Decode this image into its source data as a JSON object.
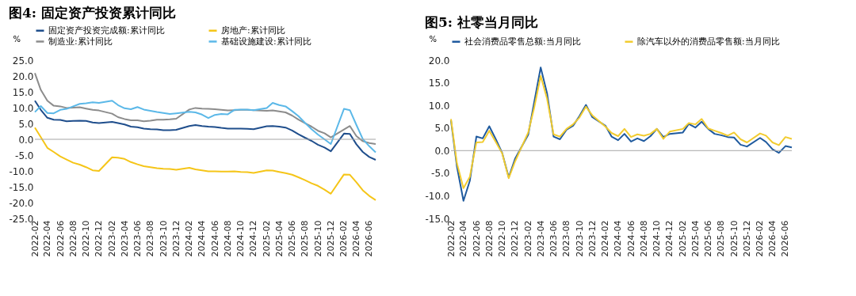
{
  "chart_data": [
    {
      "type": "line",
      "title": "图4: 固定资产投资累计同比",
      "ylabel": "%",
      "x": [
        "2022-02",
        "2022-03",
        "2022-04",
        "2022-05",
        "2022-06",
        "2022-07",
        "2022-08",
        "2022-09",
        "2022-10",
        "2022-11",
        "2022-12",
        "2023-02",
        "2023-03",
        "2023-04",
        "2023-05",
        "2023-06",
        "2023-07",
        "2023-08",
        "2023-09",
        "2023-10",
        "2023-11",
        "2023-12",
        "2024-02",
        "2024-03",
        "2024-04",
        "2024-05",
        "2024-06",
        "2024-07",
        "2024-08",
        "2024-09",
        "2024-10",
        "2024-11",
        "2024-12",
        "2025-02",
        "2025-03",
        "2025-04",
        "2025-05",
        "2025-06",
        "2025-07",
        "2025-08",
        "2025-09",
        "2025-10",
        "2025-11",
        "2025-12",
        "2026-02",
        "2026-03",
        "2026-04",
        "2026-05",
        "2026-06",
        "2026-07"
      ],
      "series": [
        {
          "name": "固定资产投资完成额:累计同比",
          "color": "#1f4e8c",
          "values": [
            12.2,
            9.3,
            6.8,
            6.2,
            6.1,
            5.7,
            5.8,
            5.9,
            5.8,
            5.3,
            5.1,
            5.5,
            5.1,
            4.7,
            4.0,
            3.8,
            3.4,
            3.2,
            3.1,
            2.9,
            2.9,
            3.0,
            4.2,
            4.5,
            4.2,
            4.0,
            3.9,
            3.6,
            3.4,
            3.4,
            3.4,
            3.3,
            3.2,
            4.1,
            4.2,
            4.0,
            3.7,
            2.8,
            1.6,
            0.5,
            -0.5,
            -1.7,
            -2.6,
            -3.8,
            1.8,
            1.7,
            -1.6,
            -4.0,
            -5.6,
            -6.5
          ]
        },
        {
          "name": "房地产:累计同比",
          "color": "#f5c518",
          "values": [
            3.7,
            0.7,
            -2.7,
            -4.0,
            -5.4,
            -6.4,
            -7.4,
            -8.0,
            -8.8,
            -9.8,
            -10.0,
            -5.7,
            -5.8,
            -6.2,
            -7.2,
            -7.9,
            -8.5,
            -8.8,
            -9.1,
            -9.3,
            -9.4,
            -9.6,
            -9.0,
            -9.5,
            -9.8,
            -10.1,
            -10.1,
            -10.2,
            -10.2,
            -10.1,
            -10.3,
            -10.4,
            -10.6,
            -9.8,
            -9.9,
            -10.3,
            -10.7,
            -11.2,
            -12.0,
            -12.9,
            -13.9,
            -14.7,
            -15.9,
            -17.2,
            -11.1,
            -11.2,
            -13.6,
            -16.1,
            -17.9,
            -19.2
          ]
        },
        {
          "name": "制造业:累计同比",
          "color": "#8c8c8c",
          "values": [
            20.9,
            15.6,
            12.2,
            10.6,
            10.4,
            9.9,
            10.0,
            10.1,
            9.7,
            9.3,
            9.1,
            8.1,
            7.0,
            6.4,
            6.0,
            6.0,
            5.7,
            5.9,
            6.2,
            6.2,
            6.3,
            6.5,
            9.4,
            9.9,
            9.7,
            9.6,
            9.5,
            9.3,
            9.1,
            9.2,
            9.3,
            9.3,
            9.2,
            9.0,
            9.1,
            8.8,
            8.5,
            7.5,
            6.2,
            5.1,
            4.0,
            2.7,
            1.9,
            0.6,
            3.1,
            4.2,
            1.0,
            -0.6,
            -1.2,
            -1.5
          ]
        },
        {
          "name": "基础设施建设:累计同比",
          "color": "#5bb8e8",
          "values": [
            8.6,
            10.5,
            8.3,
            8.2,
            9.3,
            9.6,
            10.4,
            11.2,
            11.4,
            11.7,
            11.5,
            12.2,
            10.8,
            9.8,
            9.5,
            10.2,
            9.4,
            9.0,
            8.6,
            8.3,
            8.0,
            8.2,
            8.7,
            8.5,
            7.8,
            6.7,
            7.7,
            8.0,
            7.9,
            9.3,
            9.4,
            9.4,
            9.2,
            9.9,
            11.5,
            10.8,
            10.4,
            8.9,
            7.3,
            5.2,
            3.2,
            1.5,
            0.0,
            -1.5,
            9.6,
            9.2,
            4.5,
            0.1,
            -2.2,
            -4.1
          ]
        }
      ],
      "ylim": [
        -25,
        25
      ],
      "yticks": [
        {
          "value": -25,
          "label": "-25.0"
        },
        {
          "value": -20,
          "label": "-20.0"
        },
        {
          "value": -15,
          "label": "-15.0"
        },
        {
          "value": -10,
          "label": "-10.0"
        },
        {
          "value": -5,
          "label": "-5.0"
        },
        {
          "value": 0,
          "label": "0.0"
        },
        {
          "value": 5,
          "label": "5.0"
        },
        {
          "value": 10,
          "label": "10.0"
        },
        {
          "value": 15,
          "label": "15.0"
        },
        {
          "value": 20,
          "label": "20.0"
        },
        {
          "value": 25,
          "label": "25.0"
        }
      ],
      "xlim": [
        "2022-02",
        "2026-07"
      ],
      "xticks": [
        "2022-02",
        "2022-04",
        "2022-06",
        "2022-08",
        "2022-10",
        "2022-12",
        "2023-02",
        "2023-04",
        "2023-06",
        "2023-08",
        "2023-10",
        "2023-12",
        "2024-02",
        "2024-04",
        "2024-06",
        "2024-08",
        "2024-10",
        "2024-12",
        "2025-02",
        "2025-04",
        "2025-06",
        "2025-08",
        "2025-10",
        "2025-12",
        "2026-02",
        "2026-04",
        "2026-06"
      ],
      "ref_lines": [
        {
          "axis": "y",
          "value": 0,
          "color": "#a6a6a6"
        }
      ],
      "grid": false,
      "legend": "top"
    },
    {
      "type": "line",
      "title": "图5: 社零当月同比",
      "ylabel": "%",
      "x": [
        "2022-02",
        "2022-03",
        "2022-04",
        "2022-05",
        "2022-06",
        "2022-07",
        "2022-08",
        "2022-09",
        "2022-10",
        "2022-11",
        "2022-12",
        "2023-02",
        "2023-03",
        "2023-04",
        "2023-05",
        "2023-06",
        "2023-07",
        "2023-08",
        "2023-09",
        "2023-10",
        "2023-11",
        "2023-12",
        "2024-02",
        "2024-03",
        "2024-04",
        "2024-05",
        "2024-06",
        "2024-07",
        "2024-08",
        "2024-09",
        "2024-10",
        "2024-11",
        "2024-12",
        "2025-02",
        "2025-03",
        "2025-04",
        "2025-05",
        "2025-06",
        "2025-07",
        "2025-08",
        "2025-09",
        "2025-10",
        "2025-11",
        "2025-12",
        "2026-02",
        "2026-03",
        "2026-04",
        "2026-05",
        "2026-06",
        "2026-07"
      ],
      "series": [
        {
          "name": "社会消费品零售总额:当月同比",
          "color": "#1f5a9e",
          "values": [
            6.7,
            -3.5,
            -11.1,
            -6.7,
            3.1,
            2.7,
            5.4,
            2.5,
            -0.5,
            -5.9,
            -1.8,
            3.5,
            10.6,
            18.4,
            12.7,
            3.1,
            2.5,
            4.6,
            5.5,
            7.6,
            10.1,
            7.4,
            5.5,
            3.1,
            2.3,
            3.7,
            2.0,
            2.7,
            2.1,
            3.2,
            4.8,
            3.0,
            3.7,
            4.0,
            5.9,
            5.1,
            6.4,
            4.8,
            3.7,
            3.4,
            3.0,
            2.9,
            1.3,
            0.9,
            2.8,
            1.9,
            0.3,
            -0.5,
            1.0,
            0.7
          ]
        },
        {
          "name": "除汽车以外的消费品零售额:当月同比",
          "color": "#f2cc30",
          "values": [
            7.0,
            -2.8,
            -8.3,
            -5.8,
            1.8,
            1.9,
            4.4,
            1.9,
            -0.6,
            -6.1,
            -2.4,
            4.0,
            9.4,
            16.5,
            11.5,
            3.6,
            3.1,
            4.8,
            5.8,
            7.3,
            9.7,
            7.8,
            5.3,
            3.9,
            3.2,
            4.8,
            3.0,
            3.6,
            3.3,
            3.7,
            4.8,
            2.6,
            4.2,
            4.8,
            6.1,
            5.8,
            7.0,
            4.9,
            4.4,
            3.9,
            3.3,
            4.0,
            2.5,
            1.8,
            3.8,
            3.3,
            1.8,
            1.2,
            3.0,
            2.6
          ]
        }
      ],
      "ylim": [
        -15,
        20
      ],
      "yticks": [
        {
          "value": -15,
          "label": "-15.0"
        },
        {
          "value": -10,
          "label": "-10.0"
        },
        {
          "value": -5,
          "label": "-5.0"
        },
        {
          "value": 0,
          "label": "0.0"
        },
        {
          "value": 5,
          "label": "5.0"
        },
        {
          "value": 10,
          "label": "10.0"
        },
        {
          "value": 15,
          "label": "15.0"
        },
        {
          "value": 20,
          "label": "20.0"
        }
      ],
      "xlim": [
        "2022-02",
        "2026-07"
      ],
      "xticks": [
        "2022-02",
        "2022-04",
        "2022-06",
        "2022-08",
        "2022-10",
        "2022-12",
        "2023-02",
        "2023-04",
        "2023-06",
        "2023-08",
        "2023-10",
        "2023-12",
        "2024-02",
        "2024-04",
        "2024-06",
        "2024-08",
        "2024-10",
        "2024-12",
        "2025-02",
        "2025-04",
        "2025-06",
        "2025-08",
        "2025-10",
        "2025-12",
        "2026-02",
        "2026-04",
        "2026-06"
      ],
      "ref_lines": [
        {
          "axis": "y",
          "value": 0,
          "color": "#a6a6a6"
        }
      ],
      "grid": false,
      "legend": "top"
    }
  ]
}
